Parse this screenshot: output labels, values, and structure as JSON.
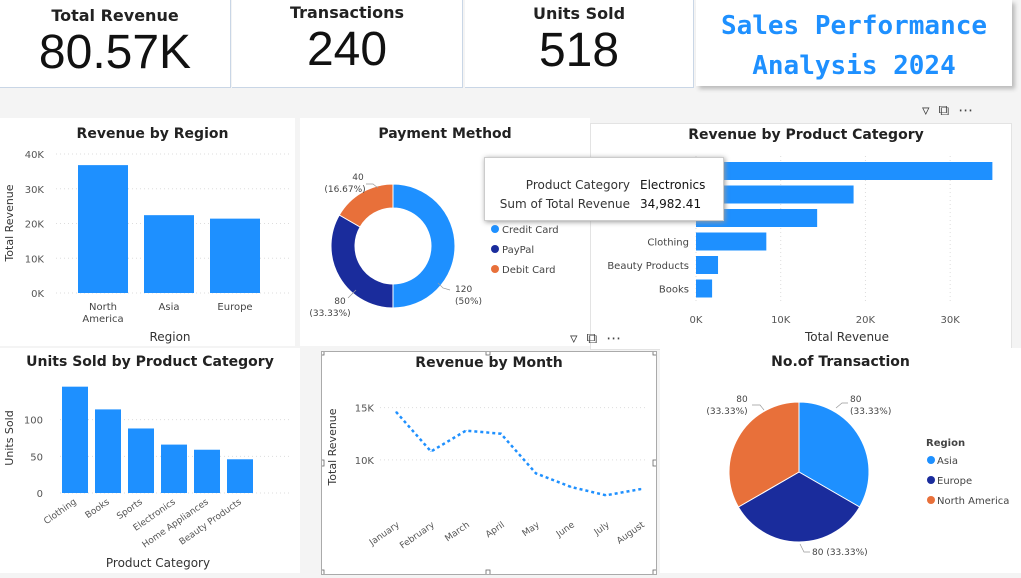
{
  "kpis": [
    {
      "label": "Total Revenue",
      "value": "80.57K"
    },
    {
      "label": "Transactions",
      "value": "240"
    },
    {
      "label": "Units Sold",
      "value": "518"
    }
  ],
  "report_title": {
    "line1": "Sales Performance",
    "line2": "Analysis 2024"
  },
  "tooltip": {
    "rows": [
      {
        "key": "Product Category",
        "value": "Electronics"
      },
      {
        "key": "Sum of Total Revenue",
        "value": "34,982.41"
      }
    ]
  },
  "icons": {
    "filter": "filter-icon",
    "focus": "focus-mode-icon",
    "more": "more-options-icon"
  },
  "colors": {
    "primary": "#1e90ff",
    "navy": "#1a2c9c",
    "orange": "#e8703a",
    "title": "#1e90ff"
  },
  "chart_data": [
    {
      "id": "revenue_by_region",
      "type": "bar",
      "title": "Revenue by Region",
      "xlabel": "Region",
      "ylabel": "Total Revenue",
      "categories": [
        "North America",
        "Asia",
        "Europe"
      ],
      "values": [
        36800,
        22400,
        21400
      ],
      "ylim": [
        0,
        40000
      ],
      "yticks": [
        "0K",
        "10K",
        "20K",
        "30K",
        "40K"
      ],
      "grid": true
    },
    {
      "id": "payment_method",
      "type": "pie",
      "title": "Payment Method",
      "labels": [
        "Credit Card",
        "PayPal",
        "Debit Card"
      ],
      "values": [
        120,
        80,
        40
      ],
      "data_labels": [
        {
          "count": "120",
          "pct": "(50%)"
        },
        {
          "count": "80",
          "pct": "(33.33%)"
        },
        {
          "count": "40",
          "pct": "(16.67%)"
        }
      ],
      "colors": [
        "#1e90ff",
        "#1a2c9c",
        "#e8703a"
      ],
      "donut": true,
      "legend": "right"
    },
    {
      "id": "revenue_by_product_category",
      "type": "bar",
      "orientation": "horizontal",
      "title": "Revenue by Product Category",
      "xlabel": "Total Revenue",
      "categories": [
        "Electronics",
        "",
        "",
        "Clothing",
        "Beauty Products",
        "Books"
      ],
      "values": [
        34982.41,
        18600,
        14300,
        8300,
        2600,
        1900
      ],
      "xlim": [
        0,
        36000
      ],
      "xticks": [
        "0K",
        "10K",
        "20K",
        "30K"
      ],
      "grid": true
    },
    {
      "id": "units_sold_by_product_category",
      "type": "bar",
      "title": "Units Sold by Product Category",
      "xlabel": "Product Category",
      "ylabel": "Units Sold",
      "categories": [
        "Clothing",
        "Books",
        "Sports",
        "Electronics",
        "Home Appliances",
        "Beauty Products"
      ],
      "values": [
        145,
        114,
        88,
        66,
        59,
        46
      ],
      "ylim": [
        0,
        150
      ],
      "yticks": [
        "0",
        "50",
        "100"
      ],
      "grid": true
    },
    {
      "id": "revenue_by_month",
      "type": "line",
      "title": "Revenue by Month",
      "ylabel": "Total Revenue",
      "categories": [
        "January",
        "February",
        "March",
        "April",
        "May",
        "June",
        "July",
        "August"
      ],
      "values": [
        14600,
        10800,
        12800,
        12500,
        8700,
        7400,
        6600,
        7200
      ],
      "ylim": [
        5000,
        16500
      ],
      "yticks": [
        "10K",
        "15K"
      ],
      "line_style": "dotted",
      "grid": true
    },
    {
      "id": "no_of_transaction",
      "type": "pie",
      "title": "No.of Transaction",
      "legend_title": "Region",
      "labels": [
        "Asia",
        "Europe",
        "North America"
      ],
      "values": [
        80,
        80,
        80
      ],
      "data_labels": [
        {
          "count": "80",
          "pct": "(33.33%)"
        },
        {
          "count": "80",
          "pct": "(33.33%)"
        },
        {
          "count": "80",
          "pct": "(33.33%)"
        }
      ],
      "colors": [
        "#1e90ff",
        "#1a2c9c",
        "#e8703a"
      ],
      "legend": "right"
    }
  ]
}
